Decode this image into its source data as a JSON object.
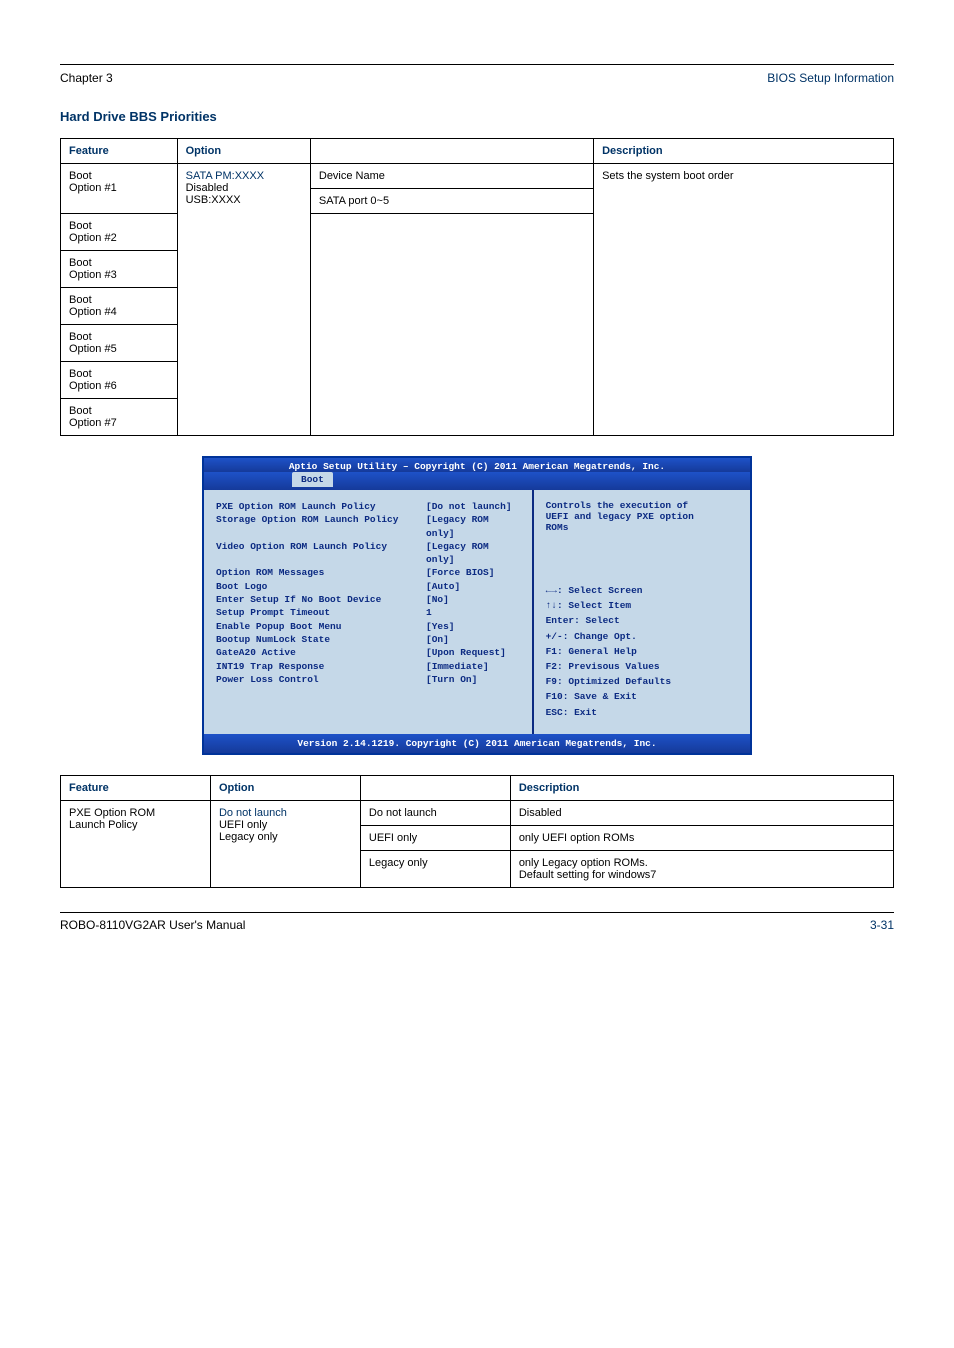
{
  "header": {
    "left": "Chapter 3",
    "right": "BIOS Setup Information"
  },
  "section1_title": "Hard Drive BBS Priorities",
  "table1": {
    "cols": [
      "Feature",
      "Option",
      "Description"
    ],
    "rows": [
      [
        "Boot\nOption #1",
        "SATA PM:XXXX\nDisabled\nUSB:XXXX",
        "Device Name",
        "Sets the system boot order"
      ],
      [
        "",
        "",
        "SATA port 0~5",
        ""
      ],
      [
        "Boot\nOption #2",
        "",
        "",
        ""
      ],
      [
        "Boot\nOption #3",
        "",
        "",
        ""
      ],
      [
        "Boot\nOption #4",
        "",
        "",
        ""
      ],
      [
        "Boot\nOption #5",
        "",
        "",
        ""
      ],
      [
        "Boot\nOption #6",
        "",
        "",
        ""
      ],
      [
        "Boot\nOption #7",
        "",
        "",
        ""
      ]
    ]
  },
  "bios": {
    "top": "Aptio Setup Utility – Copyright (C) 2011 American Megatrends, Inc.",
    "tab": "Boot",
    "rows": [
      [
        "PXE Option ROM Launch Policy",
        "[Do not launch]"
      ],
      [
        "Storage Option ROM Launch Policy",
        "[Legacy ROM only]"
      ],
      [
        "Video Option ROM Launch Policy",
        "[Legacy ROM only]"
      ],
      [
        "Option ROM Messages",
        "[Force BIOS]"
      ],
      [
        "",
        ""
      ],
      [
        "Boot Logo",
        "[Auto]"
      ],
      [
        "Enter Setup If No Boot Device",
        "[No]"
      ],
      [
        "Setup Prompt Timeout",
        "1"
      ],
      [
        "Enable Popup Boot Menu",
        "[Yes]"
      ],
      [
        "",
        ""
      ],
      [
        "Bootup NumLock State",
        "[On]"
      ],
      [
        "GateA20 Active",
        "[Upon Request]"
      ],
      [
        "INT19 Trap Response",
        "[Immediate]"
      ],
      [
        "",
        ""
      ],
      [
        "Power Loss Control",
        "[Turn On]"
      ]
    ],
    "help": "Controls the execution of\nUEFI and legacy PXE option\nROMs",
    "keys": [
      "←→: Select Screen",
      "↑↓: Select Item",
      "Enter: Select",
      "+/-: Change Opt.",
      "F1: General Help",
      "F2: Previsous Values",
      "F9: Optimized Defaults",
      "F10: Save & Exit",
      "ESC: Exit"
    ],
    "bottom": "Version 2.14.1219. Copyright (C) 2011 American Megatrends, Inc."
  },
  "table2": {
    "cols": [
      "Feature",
      "Option",
      "",
      "Description"
    ],
    "rows": [
      [
        "PXE Option ROM\nLaunch Policy",
        "Do not launch\nUEFI only\nLegacy only",
        "Do not launch",
        "Disabled"
      ],
      [
        "",
        "",
        "UEFI only",
        "only UEFI option ROMs"
      ],
      [
        "",
        "",
        "Legacy only",
        "only Legacy option ROMs.\nDefault setting for windows7"
      ]
    ]
  },
  "footer": {
    "left": "ROBO-8110VG2AR User's Manual",
    "right": "3-31"
  },
  "colors": {
    "text": "#000000",
    "accent": "#003366",
    "bios_header": "#1e52c8",
    "bios_body": "#c5d8e8",
    "bios_text": "#0b2a82"
  }
}
